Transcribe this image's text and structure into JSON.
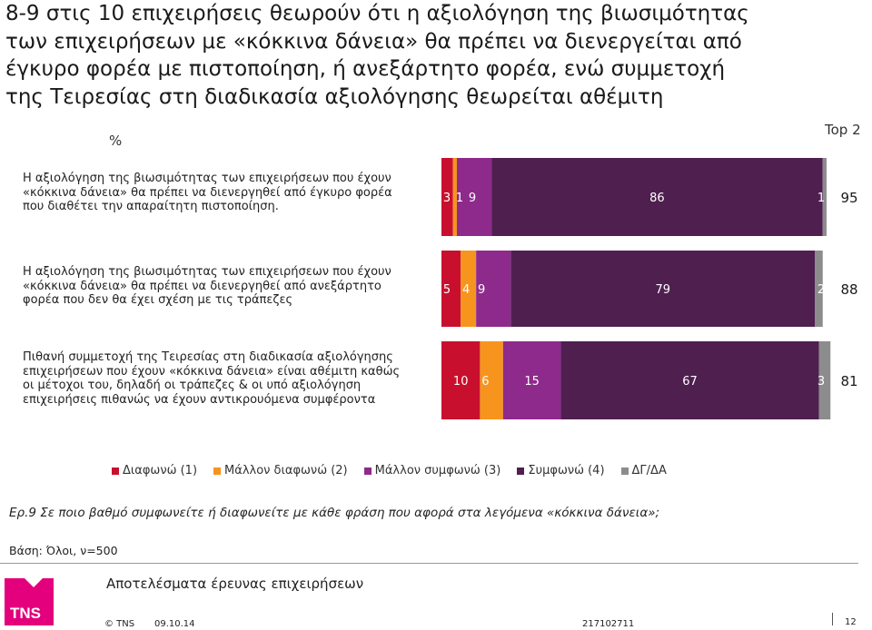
{
  "title_lines": [
    "8-9 στις 10 επιχειρήσεις θεωρούν ότι η αξιολόγηση της βιωσιμότητας",
    "των επιχειρήσεων με «κόκκινα δάνεια» θα πρέπει να διενεργείται από",
    "έγκυρο φορέα με πιστοποίηση, ή ανεξάρτητο φορέα, ενώ συμμετοχή",
    "της Τειρεσίας στη διαδικασία αξιολόγησης θεωρείται αθέμιτη"
  ],
  "unit_label": "%",
  "top2_label": "Top 2",
  "statements": [
    [
      "Η αξιολόγηση της βιωσιμότητας των επιχειρήσεων που έχουν",
      "«κόκκινα δάνεια» θα πρέπει να διενεργηθεί από έγκυρο φορέα",
      "που διαθέτει την απαραίτητη πιστοποίηση."
    ],
    [
      "Η αξιολόγηση της βιωσιμότητας των επιχειρήσεων που έχουν",
      "«κόκκινα δάνεια» θα πρέπει να διενεργηθεί από ανεξάρτητο",
      "φορέα που δεν θα έχει σχέση με τις τράπεζες"
    ],
    [
      "Πιθανή συμμετοχή της Τειρεσίας στη διαδικασία αξιολόγησης",
      "επιχειρήσεων που έχουν «κόκκινα δάνεια» είναι αθέμιτη καθώς",
      "οι μέτοχοι του, δηλαδή οι τράπεζες & οι υπό αξιολόγηση",
      "επιχειρήσεις πιθανώς να έχουν αντικρουόμενα συμφέροντα"
    ]
  ],
  "chart_data": {
    "type": "bar",
    "orientation": "horizontal-stacked",
    "unit": "%",
    "categories": [
      "statement-1",
      "statement-2",
      "statement-3"
    ],
    "series": [
      {
        "name": "Διαφωνώ (1)",
        "color": "#c8102e",
        "values": [
          3,
          5,
          10
        ]
      },
      {
        "name": "Μάλλον διαφωνώ (2)",
        "color": "#f7941d",
        "values": [
          1,
          4,
          6
        ]
      },
      {
        "name": "Μάλλον συμφωνώ (3)",
        "color": "#8e2a8b",
        "values": [
          9,
          9,
          15
        ]
      },
      {
        "name": "Συμφωνώ (4)",
        "color": "#4f1f50",
        "values": [
          86,
          79,
          67
        ]
      },
      {
        "name": "ΔΓ/ΔΑ",
        "color": "#8c8c8c",
        "values": [
          1,
          2,
          3
        ]
      }
    ],
    "top2": [
      95,
      88,
      81
    ],
    "legend_position": "bottom"
  },
  "question": "Ερ.9 Σε ποιο βαθμό συμφωνείτε ή διαφωνείτε με κάθε φράση που αφορά στα λεγόμενα «κόκκινα δάνεια»;",
  "base": "Βάση: Όλοι, ν=500",
  "survey_title": "Αποτελέσματα έρευνας επιχειρήσεων",
  "logo_text": "TNS",
  "footer": {
    "copyright": "© TNS",
    "date": "09.10.14",
    "job_number": "217102711",
    "page": "12"
  }
}
